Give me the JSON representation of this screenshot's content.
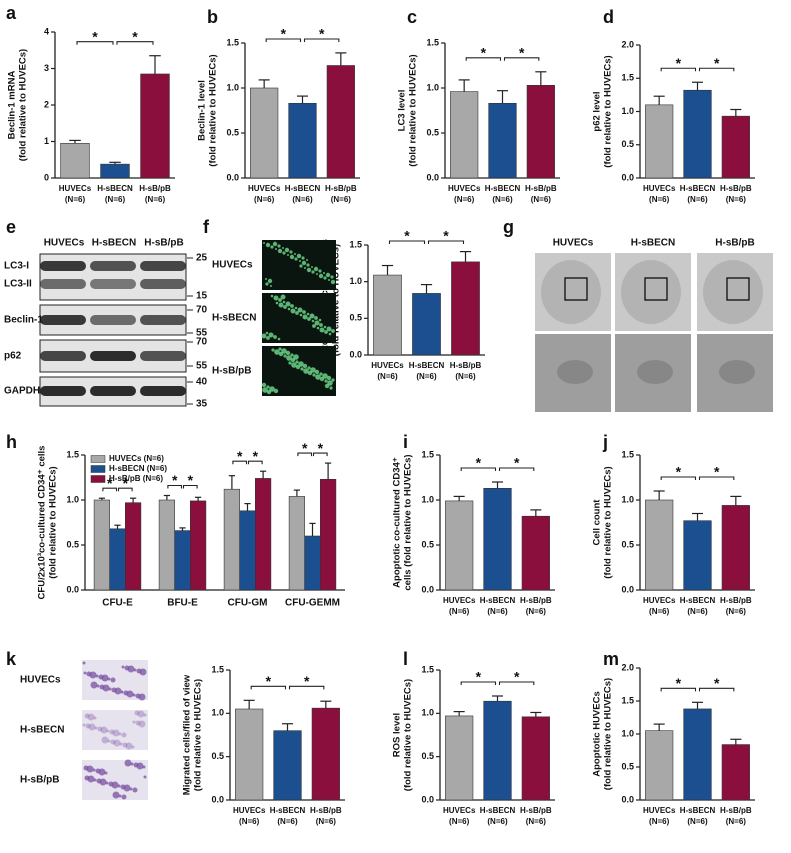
{
  "chart_data": [
    {
      "type": "bar",
      "panel": "a",
      "ylabel": [
        "Beclin-1 mRNA",
        "(fold relative to HUVECs)"
      ],
      "categories": [
        "HUVECs",
        "H-sBECN",
        "H-sB/pB"
      ],
      "n_labels": [
        "(N=6)",
        "(N=6)",
        "(N=6)"
      ],
      "values": [
        0.95,
        0.38,
        2.85
      ],
      "errors": [
        0.08,
        0.05,
        0.5
      ],
      "colors": [
        "#a8a8a8",
        "#1b4f8f",
        "#8a0f3d"
      ],
      "ylim": [
        0,
        4
      ],
      "yticks": [
        0,
        1,
        2,
        3,
        4
      ],
      "sig_label": "*"
    },
    {
      "type": "bar",
      "panel": "b",
      "ylabel": [
        "Beclin-1 level",
        "(fold relative to HUVECs)"
      ],
      "categories": [
        "HUVECs",
        "H-sBECN",
        "H-sB/pB"
      ],
      "n_labels": [
        "(N=6)",
        "(N=6)",
        "(N=6)"
      ],
      "values": [
        1.0,
        0.83,
        1.25
      ],
      "errors": [
        0.09,
        0.08,
        0.14
      ],
      "colors": [
        "#a8a8a8",
        "#1b4f8f",
        "#8a0f3d"
      ],
      "ylim": [
        0,
        1.5
      ],
      "yticks": [
        {
          "value": 0,
          "label": "0.0"
        },
        {
          "value": 0.5,
          "label": "0.5"
        },
        {
          "value": 1,
          "label": "1.0"
        },
        {
          "value": 1.5,
          "label": "1.5"
        }
      ],
      "sig_label": "*"
    },
    {
      "type": "bar",
      "panel": "c",
      "ylabel": [
        "LC3 level",
        "(fold relative to HUVECs)"
      ],
      "categories": [
        "HUVECs",
        "H-sBECN",
        "H-sB/pB"
      ],
      "n_labels": [
        "(N=6)",
        "(N=6)",
        "(N=6)"
      ],
      "values": [
        0.96,
        0.83,
        1.03
      ],
      "errors": [
        0.13,
        0.14,
        0.15
      ],
      "colors": [
        "#a8a8a8",
        "#1b4f8f",
        "#8a0f3d"
      ],
      "ylim": [
        0,
        1.5
      ],
      "yticks": [
        {
          "value": 0,
          "label": "0.0"
        },
        {
          "value": 0.5,
          "label": "0.5"
        },
        {
          "value": 1,
          "label": "1.0"
        },
        {
          "value": 1.5,
          "label": "1.5"
        }
      ],
      "sig_label": "*"
    },
    {
      "type": "bar",
      "panel": "d",
      "ylabel": [
        "p62 level",
        "(fold relative to HUVECs)"
      ],
      "categories": [
        "HUVECs",
        "H-sBECN",
        "H-sB/pB"
      ],
      "n_labels": [
        "(N=6)",
        "(N=6)",
        "(N=6)"
      ],
      "values": [
        1.1,
        1.32,
        0.93
      ],
      "errors": [
        0.13,
        0.12,
        0.1
      ],
      "colors": [
        "#a8a8a8",
        "#1b4f8f",
        "#8a0f3d"
      ],
      "ylim": [
        0,
        2
      ],
      "yticks": [
        {
          "value": 0,
          "label": "0.0"
        },
        {
          "value": 0.5,
          "label": "0.5"
        },
        {
          "value": 1,
          "label": "1.0"
        },
        {
          "value": 1.5,
          "label": "1.5"
        },
        {
          "value": 2,
          "label": "2.0"
        }
      ],
      "sig_label": "*"
    },
    {
      "type": "bar",
      "panel": "f",
      "ylabel": [
        "Autophagic vacuoles/ cells",
        "(fold relative to HUVECs)"
      ],
      "categories": [
        "HUVECs",
        "H-sBECN",
        "H-sB/pB"
      ],
      "n_labels": [
        "(N=6)",
        "(N=6)",
        "(N=6)"
      ],
      "values": [
        1.09,
        0.84,
        1.27
      ],
      "errors": [
        0.13,
        0.12,
        0.14
      ],
      "colors": [
        "#a8a8a8",
        "#1b4f8f",
        "#8a0f3d"
      ],
      "ylim": [
        0,
        1.5
      ],
      "yticks": [
        {
          "value": 0,
          "label": "0.0"
        },
        {
          "value": 0.5,
          "label": "0.5"
        },
        {
          "value": 1,
          "label": "1.0"
        },
        {
          "value": 1.5,
          "label": "1.5"
        }
      ],
      "sig_label": "*"
    },
    {
      "type": "grouped_bar",
      "panel": "h",
      "ylabel": [
        "CFU/2x10³co-cultured CD34⁺ cells",
        "(fold relative to HUVECs)"
      ],
      "categories": [
        "CFU-E",
        "BFU-E",
        "CFU-GM",
        "CFU-GEMM"
      ],
      "series": [
        {
          "name": "HUVECs (N=6)",
          "color": "#a8a8a8",
          "values": [
            1.0,
            1.0,
            1.12,
            1.04
          ],
          "errors": [
            0.02,
            0.05,
            0.15,
            0.07
          ]
        },
        {
          "name": "H-sBECN (N=6)",
          "color": "#1b4f8f",
          "values": [
            0.68,
            0.66,
            0.88,
            0.6
          ],
          "errors": [
            0.04,
            0.03,
            0.08,
            0.14
          ]
        },
        {
          "name": "H-sB/pB (N=6)",
          "color": "#8a0f3d",
          "values": [
            0.97,
            0.99,
            1.24,
            1.23
          ],
          "errors": [
            0.05,
            0.04,
            0.08,
            0.18
          ]
        }
      ],
      "ylim": [
        0,
        1.5
      ],
      "yticks": [
        {
          "value": 0,
          "label": "0.0"
        },
        {
          "value": 0.5,
          "label": "0.5"
        },
        {
          "value": 1,
          "label": "1.0"
        },
        {
          "value": 1.5,
          "label": "1.5"
        }
      ],
      "legend": "upper left",
      "sig_label": "*"
    },
    {
      "type": "bar",
      "panel": "i",
      "ylabel": [
        "Apoptotic co-cultured CD34⁺",
        "cells (fold relative to HUVECs)"
      ],
      "categories": [
        "HUVECs",
        "H-sBECN",
        "H-sB/pB"
      ],
      "n_labels": [
        "(N=6)",
        "(N=6)",
        "(N=6)"
      ],
      "values": [
        0.99,
        1.13,
        0.82
      ],
      "errors": [
        0.05,
        0.07,
        0.07
      ],
      "colors": [
        "#a8a8a8",
        "#1b4f8f",
        "#8a0f3d"
      ],
      "ylim": [
        0,
        1.5
      ],
      "yticks": [
        {
          "value": 0,
          "label": "0.0"
        },
        {
          "value": 0.5,
          "label": "0.5"
        },
        {
          "value": 1,
          "label": "1.0"
        },
        {
          "value": 1.5,
          "label": "1.5"
        }
      ],
      "sig_label": "*"
    },
    {
      "type": "bar",
      "panel": "j",
      "ylabel": [
        "Cell count",
        "(fold relative to HUVECs)"
      ],
      "categories": [
        "HUVECs",
        "H-sBECN",
        "H-sB/pB"
      ],
      "n_labels": [
        "(N=6)",
        "(N=6)",
        "(N=6)"
      ],
      "values": [
        1.0,
        0.77,
        0.94
      ],
      "errors": [
        0.1,
        0.08,
        0.1
      ],
      "colors": [
        "#a8a8a8",
        "#1b4f8f",
        "#8a0f3d"
      ],
      "ylim": [
        0,
        1.5
      ],
      "yticks": [
        {
          "value": 0,
          "label": "0.0"
        },
        {
          "value": 0.5,
          "label": "0.5"
        },
        {
          "value": 1,
          "label": "1.0"
        },
        {
          "value": 1.5,
          "label": "1.5"
        }
      ],
      "sig_label": "*"
    },
    {
      "type": "bar",
      "panel": "k",
      "ylabel": [
        "Migrated cells/filed of view",
        "(fold relative to HUVECs)"
      ],
      "categories": [
        "HUVECs",
        "H-sBECN",
        "H-sB/pB"
      ],
      "n_labels": [
        "(N=6)",
        "(N=6)",
        "(N=6)"
      ],
      "values": [
        1.05,
        0.8,
        1.06
      ],
      "errors": [
        0.1,
        0.08,
        0.08
      ],
      "colors": [
        "#a8a8a8",
        "#1b4f8f",
        "#8a0f3d"
      ],
      "ylim": [
        0,
        1.5
      ],
      "yticks": [
        {
          "value": 0,
          "label": "0.0"
        },
        {
          "value": 0.5,
          "label": "0.5"
        },
        {
          "value": 1,
          "label": "1.0"
        },
        {
          "value": 1.5,
          "label": "1.5"
        }
      ],
      "sig_label": "*"
    },
    {
      "type": "bar",
      "panel": "l",
      "ylabel": [
        "ROS level",
        "(fold relative to HUVECs)"
      ],
      "categories": [
        "HUVECs",
        "H-sBECN",
        "H-sB/pB"
      ],
      "n_labels": [
        "(N=6)",
        "(N=6)",
        "(N=6)"
      ],
      "values": [
        0.97,
        1.14,
        0.96
      ],
      "errors": [
        0.05,
        0.06,
        0.05
      ],
      "colors": [
        "#a8a8a8",
        "#1b4f8f",
        "#8a0f3d"
      ],
      "ylim": [
        0,
        1.5
      ],
      "yticks": [
        {
          "value": 0,
          "label": "0.0"
        },
        {
          "value": 0.5,
          "label": "0.5"
        },
        {
          "value": 1,
          "label": "1.0"
        },
        {
          "value": 1.5,
          "label": "1.5"
        }
      ],
      "sig_label": "*"
    },
    {
      "type": "bar",
      "panel": "m",
      "ylabel": [
        "Apoptotic HUVECs",
        "(fold relative to HUVECs)"
      ],
      "categories": [
        "HUVECs",
        "H-sBECN",
        "H-sB/pB"
      ],
      "n_labels": [
        "(N=6)",
        "(N=6)",
        "(N=6)"
      ],
      "values": [
        1.05,
        1.38,
        0.84
      ],
      "errors": [
        0.1,
        0.1,
        0.08
      ],
      "colors": [
        "#a8a8a8",
        "#1b4f8f",
        "#8a0f3d"
      ],
      "ylim": [
        0,
        2
      ],
      "yticks": [
        {
          "value": 0,
          "label": "0.0"
        },
        {
          "value": 0.5,
          "label": "0.5"
        },
        {
          "value": 1,
          "label": "1.0"
        },
        {
          "value": 1.5,
          "label": "1.5"
        },
        {
          "value": 2,
          "label": "2.0"
        }
      ],
      "sig_label": "*"
    }
  ],
  "blot": {
    "panel": "e",
    "columns": [
      "HUVECs",
      "H-sBECN",
      "H-sB/pB"
    ],
    "rows": [
      "LC3-I",
      "LC3-II",
      "Beclin-1",
      "p62",
      "GAPDH"
    ],
    "markers": [
      "25",
      "15",
      "70",
      "55",
      "70",
      "55",
      "40",
      "35"
    ]
  },
  "fluorescence": {
    "labels": [
      "HUVECs",
      "H-sBECN",
      "H-sB/pB"
    ]
  },
  "electron": {
    "panel": "g",
    "labels": [
      "HUVECs",
      "H-sBECN",
      "H-sB/pB"
    ]
  },
  "migration": {
    "labels": [
      "HUVECs",
      "H-sBECN",
      "H-sB/pB"
    ]
  }
}
